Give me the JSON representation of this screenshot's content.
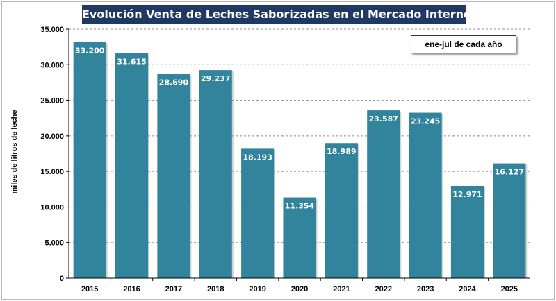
{
  "chart_data": {
    "type": "bar",
    "title": "Evolución  Venta de Leches Saborizadas  en el Mercado Interno",
    "annotation": "ene-jul de cada año",
    "ylabel": "miles de litros de leche",
    "xlabel": "",
    "categories": [
      "2015",
      "2016",
      "2017",
      "2018",
      "2019",
      "2020",
      "2021",
      "2022",
      "2023",
      "2024",
      "2025"
    ],
    "values": [
      33200,
      31615,
      28690,
      29237,
      18193,
      11354,
      18989,
      23587,
      23245,
      12971,
      16127
    ],
    "value_labels": [
      "33.200",
      "31.615",
      "28.690",
      "29.237",
      "18.193",
      "11.354",
      "18.989",
      "23.587",
      "23.245",
      "12.971",
      "16.127"
    ],
    "ylim": [
      0,
      35000
    ],
    "yticks": [
      0,
      5000,
      10000,
      15000,
      20000,
      25000,
      30000,
      35000
    ],
    "ytick_labels": [
      "0",
      "5.000",
      "10.000",
      "15.000",
      "20.000",
      "25.000",
      "30.000",
      "35.000"
    ],
    "grid": true,
    "legend": "none",
    "bar_color": "#31849b",
    "title_background": "#1f3864"
  }
}
